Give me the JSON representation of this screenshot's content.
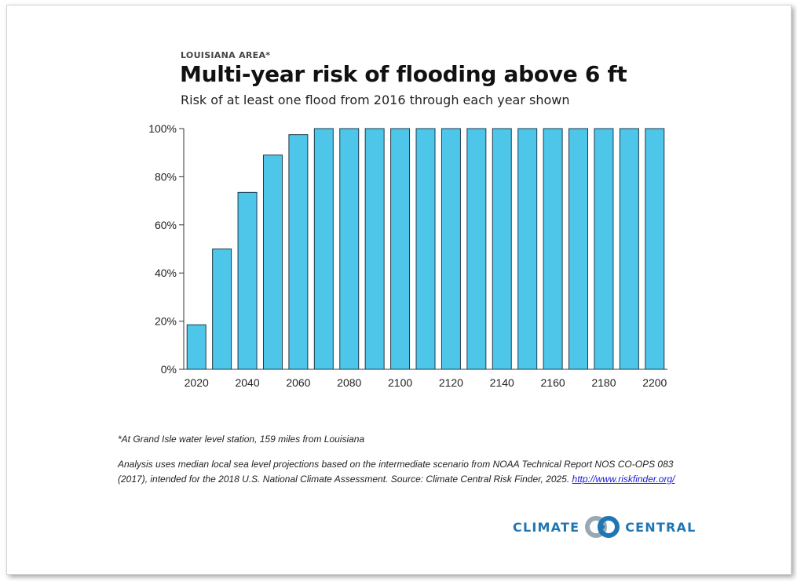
{
  "header": {
    "kicker": "LOUISIANA AREA*",
    "title": "Multi-year risk of flooding above 6 ft",
    "subtitle": "Risk of at least one flood from 2016 through each year shown"
  },
  "chart_data": {
    "type": "bar",
    "categories": [
      "2020",
      "2030",
      "2040",
      "2050",
      "2060",
      "2070",
      "2080",
      "2090",
      "2100",
      "2110",
      "2120",
      "2130",
      "2140",
      "2150",
      "2160",
      "2170",
      "2180",
      "2190",
      "2200"
    ],
    "values": [
      18.5,
      50,
      73.5,
      89,
      97.5,
      100,
      100,
      100,
      100,
      100,
      100,
      100,
      100,
      100,
      100,
      100,
      100,
      100,
      100
    ],
    "x_tick_labels": [
      "2020",
      "2040",
      "2060",
      "2080",
      "2100",
      "2120",
      "2140",
      "2160",
      "2180",
      "2200"
    ],
    "y_tick_labels": [
      "0%",
      "20%",
      "40%",
      "60%",
      "80%",
      "100%"
    ],
    "ylim": [
      0,
      100
    ],
    "y_unit": "%",
    "grid": false,
    "bar_color": "#4ec6ea",
    "bar_stroke": "#1d3a4a"
  },
  "notes": {
    "footnote": "*At Grand Isle water level station, 159 miles from Louisiana",
    "analysis_text": "Analysis uses median local sea level projections based on the intermediate scenario from NOAA Technical Report NOS CO-OPS 083 (2017), intended for the 2018 U.S. National Climate Assessment. Source: Climate Central Risk Finder, 2025. ",
    "link_text": "http://www.riskfinder.org/"
  },
  "logo": {
    "left_word": "CLIMATE",
    "right_word": "CENTRAL",
    "color": "#1f76b4"
  }
}
